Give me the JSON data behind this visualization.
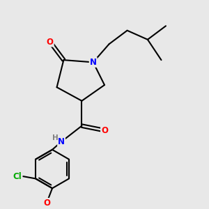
{
  "bg_color": "#e8e8e8",
  "bond_color": "#000000",
  "bond_width": 1.5,
  "atom_colors": {
    "O": "#ff0000",
    "N": "#0000ff",
    "Cl": "#00aa00",
    "C": "#000000",
    "H": "#808080"
  },
  "font_size_atom": 8.5,
  "N_x": 5.0,
  "N_y": 6.8,
  "C5_x": 3.7,
  "C5_y": 6.9,
  "C4_x": 3.4,
  "C4_y": 5.7,
  "C3_x": 4.5,
  "C3_y": 5.1,
  "C2_x": 5.5,
  "C2_y": 5.8,
  "O1_x": 3.1,
  "O1_y": 7.7,
  "CH2a_x": 5.7,
  "CH2a_y": 7.6,
  "CH2b_x": 6.5,
  "CH2b_y": 8.2,
  "CHc_x": 7.4,
  "CHc_y": 7.8,
  "CH3a_x": 8.2,
  "CH3a_y": 8.4,
  "CH3b_x": 8.0,
  "CH3b_y": 6.9,
  "CO_x": 4.5,
  "CO_y": 4.0,
  "O2_x": 5.5,
  "O2_y": 3.8,
  "NH_x": 3.6,
  "NH_y": 3.3,
  "phcx": 3.2,
  "phcy": 2.1,
  "ph_r": 0.85,
  "ph_angles": [
    90,
    30,
    -30,
    -90,
    -150,
    150
  ],
  "xlim": [
    1.5,
    9.5
  ],
  "ylim": [
    0.5,
    9.5
  ]
}
